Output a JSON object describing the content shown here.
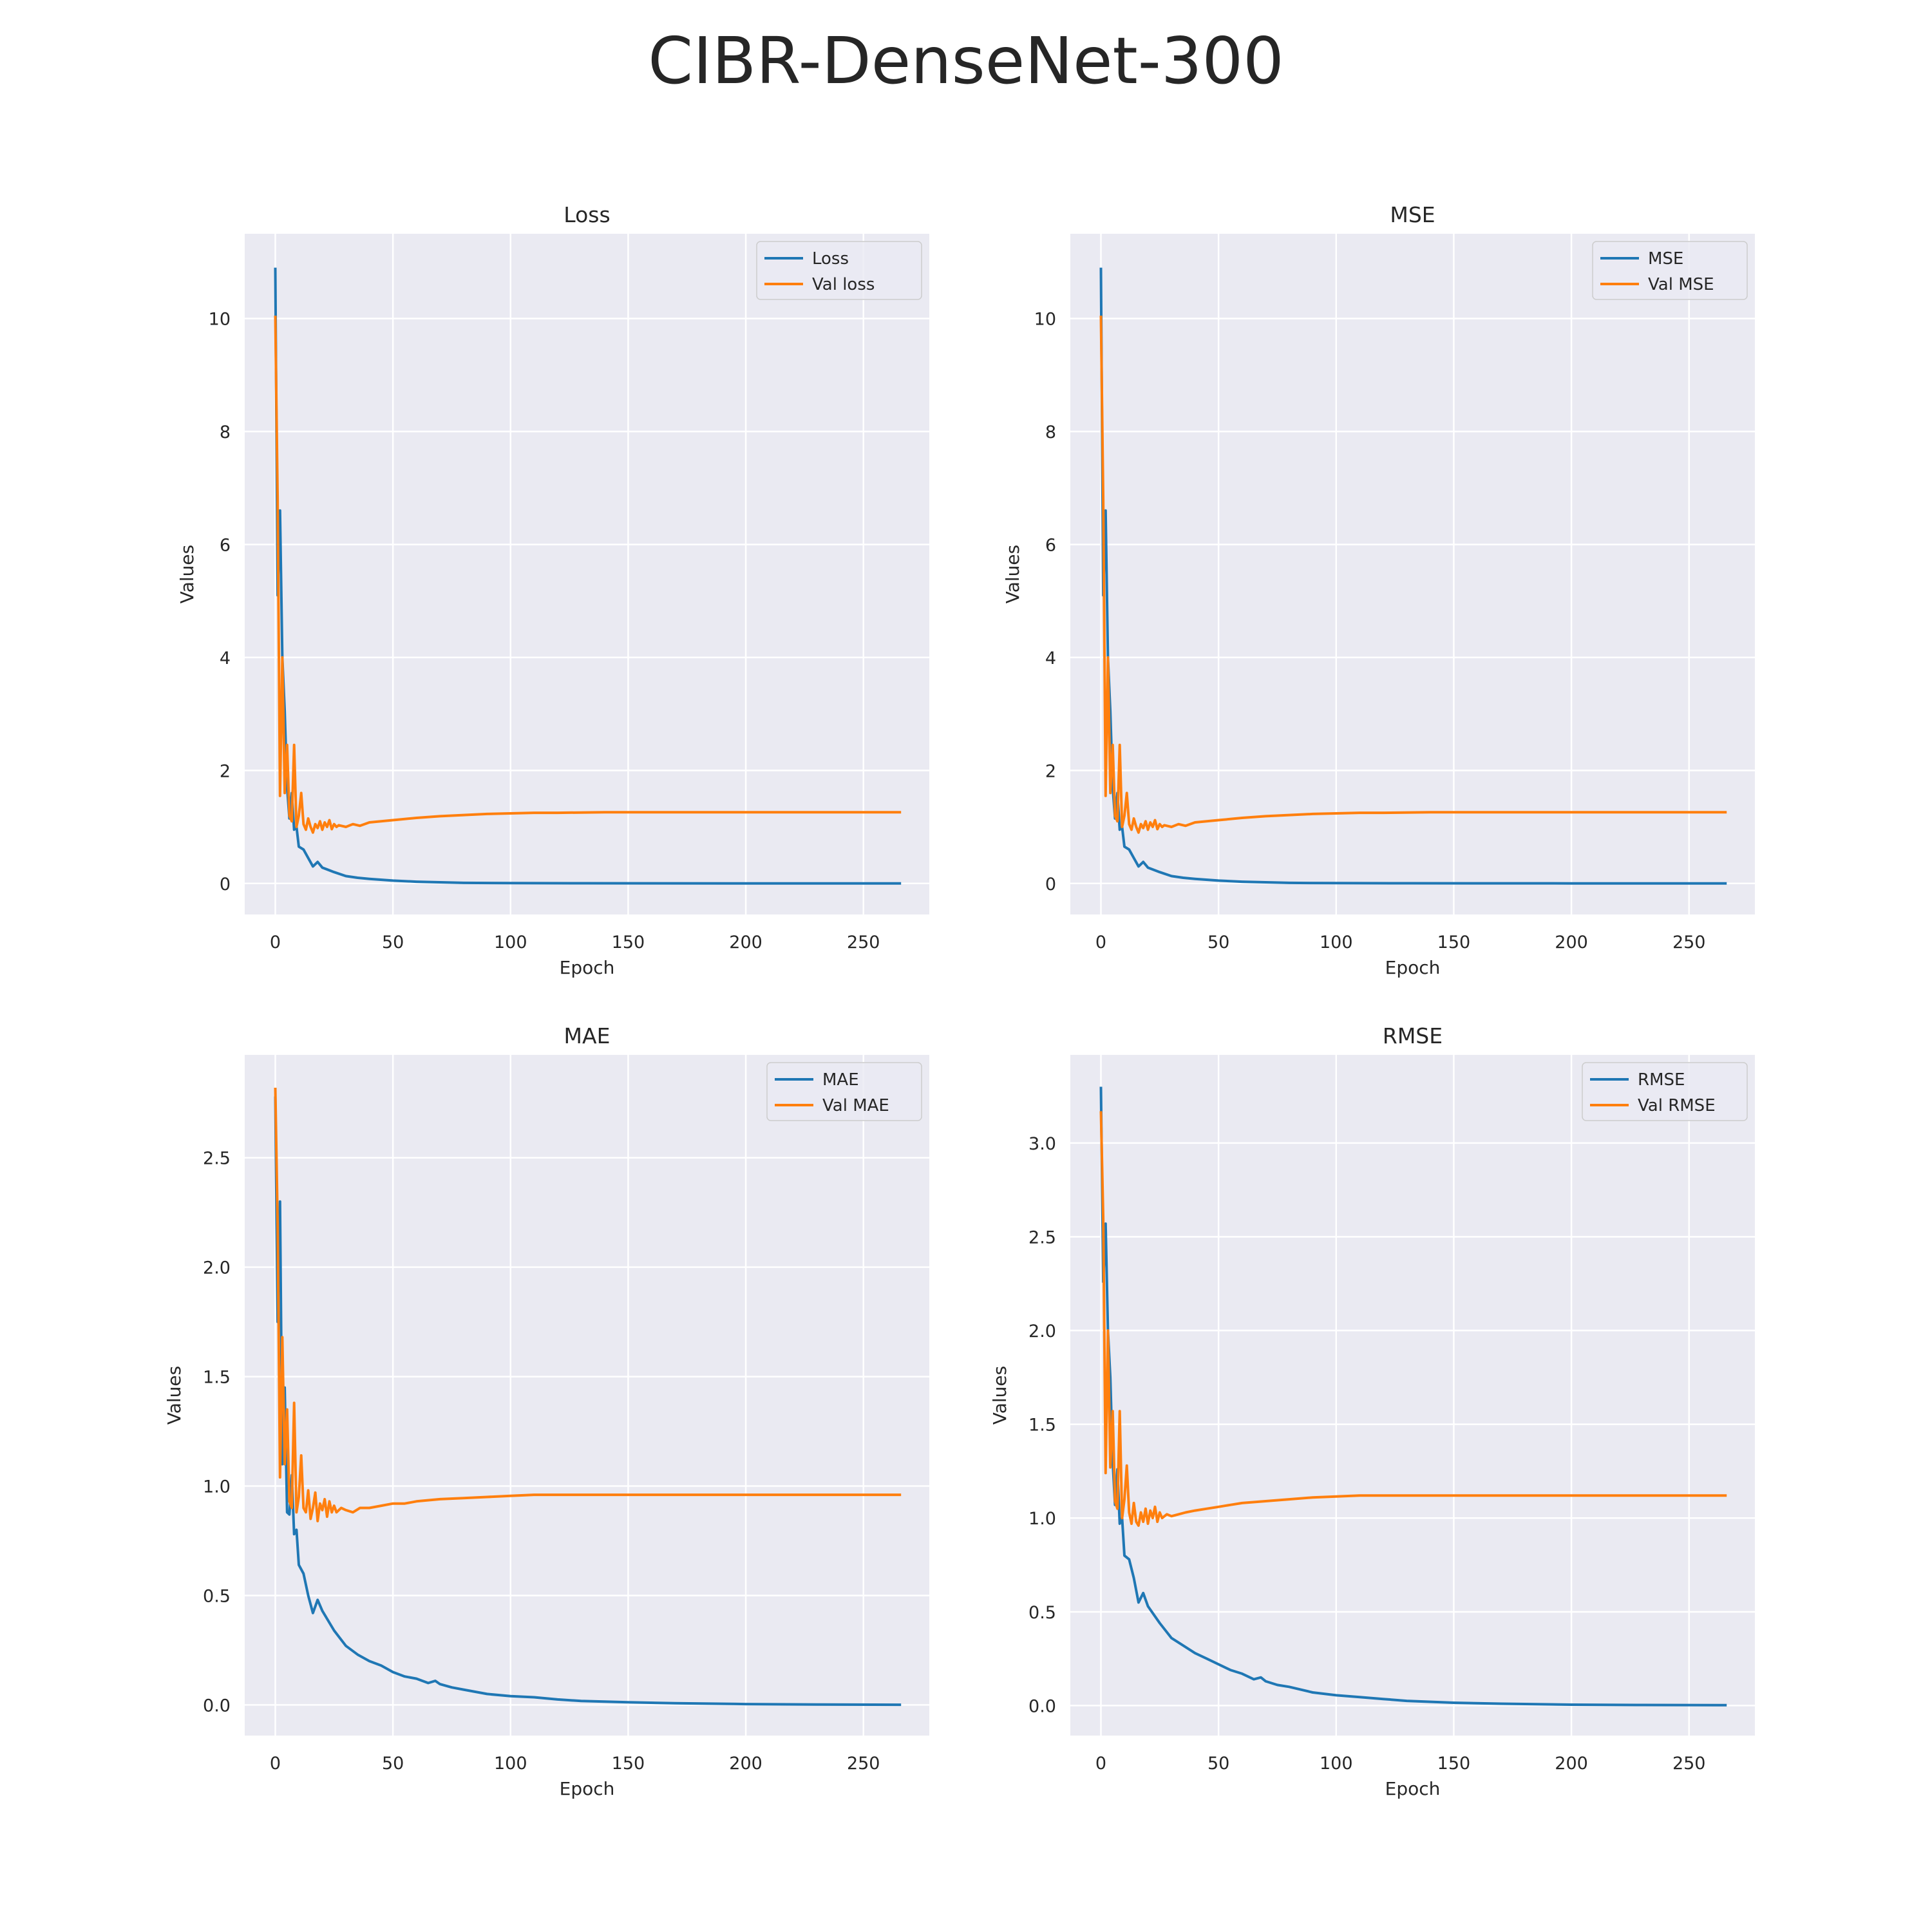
{
  "figure_title": "CIBR-DenseNet-300",
  "colors": {
    "train": "#1f77b4",
    "val": "#ff7f0e",
    "panel_bg": "#eaeaf2",
    "grid": "#ffffff"
  },
  "chart_data": [
    {
      "type": "line",
      "title": "Loss",
      "xlabel": "Epoch",
      "ylabel": "Values",
      "xlim": [
        -13,
        278
      ],
      "ylim": [
        -0.55,
        11.5
      ],
      "xticks": [
        0,
        50,
        100,
        150,
        200,
        250
      ],
      "yticks": [
        0,
        2,
        4,
        6,
        8,
        10
      ],
      "ytick_labels": [
        "0",
        "2",
        "4",
        "6",
        "8",
        "10"
      ],
      "grid": true,
      "legend_position": "upper right",
      "series": [
        {
          "name": "Loss",
          "color": "#1f77b4",
          "x": [
            0,
            1,
            2,
            3,
            4,
            5,
            6,
            7,
            8,
            9,
            10,
            12,
            14,
            16,
            18,
            20,
            25,
            30,
            35,
            40,
            50,
            60,
            70,
            80,
            100,
            130,
            160,
            200,
            230,
            266
          ],
          "y": [
            10.9,
            5.1,
            6.6,
            4.0,
            3.05,
            1.7,
            1.15,
            1.6,
            0.95,
            1.0,
            0.65,
            0.6,
            0.45,
            0.3,
            0.38,
            0.28,
            0.2,
            0.13,
            0.1,
            0.08,
            0.05,
            0.03,
            0.02,
            0.01,
            0.005,
            0.003,
            0.002,
            0.001,
            0.001,
            0.001
          ]
        },
        {
          "name": "Val loss",
          "color": "#ff7f0e",
          "x": [
            0,
            1,
            2,
            3,
            4,
            5,
            6,
            7,
            8,
            9,
            10,
            11,
            12,
            13,
            14,
            15,
            16,
            17,
            18,
            19,
            20,
            21,
            22,
            23,
            24,
            25,
            26,
            27,
            28,
            30,
            33,
            36,
            40,
            45,
            50,
            55,
            60,
            70,
            80,
            90,
            100,
            110,
            120,
            140,
            160,
            200,
            230,
            266
          ],
          "y": [
            10.05,
            6.8,
            1.55,
            4.0,
            1.6,
            2.45,
            1.2,
            1.1,
            2.45,
            1.0,
            1.2,
            1.6,
            1.05,
            0.95,
            1.15,
            1.0,
            0.9,
            1.05,
            0.98,
            1.1,
            0.95,
            1.08,
            1.0,
            1.12,
            0.96,
            1.05,
            1.0,
            1.03,
            1.02,
            1.0,
            1.05,
            1.02,
            1.08,
            1.1,
            1.12,
            1.14,
            1.16,
            1.19,
            1.21,
            1.23,
            1.24,
            1.25,
            1.25,
            1.26,
            1.26,
            1.26,
            1.26,
            1.26
          ]
        }
      ]
    },
    {
      "type": "line",
      "title": "MSE",
      "xlabel": "Epoch",
      "ylabel": "Values",
      "xlim": [
        -13,
        278
      ],
      "ylim": [
        -0.55,
        11.5
      ],
      "xticks": [
        0,
        50,
        100,
        150,
        200,
        250
      ],
      "yticks": [
        0,
        2,
        4,
        6,
        8,
        10
      ],
      "ytick_labels": [
        "0",
        "2",
        "4",
        "6",
        "8",
        "10"
      ],
      "grid": true,
      "legend_position": "upper right",
      "series": [
        {
          "name": "MSE",
          "color": "#1f77b4",
          "x": [
            0,
            1,
            2,
            3,
            4,
            5,
            6,
            7,
            8,
            9,
            10,
            12,
            14,
            16,
            18,
            20,
            25,
            30,
            35,
            40,
            50,
            60,
            70,
            80,
            100,
            130,
            160,
            200,
            230,
            266
          ],
          "y": [
            10.9,
            5.1,
            6.6,
            4.0,
            3.05,
            1.7,
            1.15,
            1.6,
            0.95,
            1.0,
            0.65,
            0.6,
            0.45,
            0.3,
            0.38,
            0.28,
            0.2,
            0.13,
            0.1,
            0.08,
            0.05,
            0.03,
            0.02,
            0.01,
            0.005,
            0.003,
            0.002,
            0.001,
            0.001,
            0.001
          ]
        },
        {
          "name": "Val MSE",
          "color": "#ff7f0e",
          "x": [
            0,
            1,
            2,
            3,
            4,
            5,
            6,
            7,
            8,
            9,
            10,
            11,
            12,
            13,
            14,
            15,
            16,
            17,
            18,
            19,
            20,
            21,
            22,
            23,
            24,
            25,
            26,
            27,
            28,
            30,
            33,
            36,
            40,
            45,
            50,
            55,
            60,
            70,
            80,
            90,
            100,
            110,
            120,
            140,
            160,
            200,
            230,
            266
          ],
          "y": [
            10.05,
            6.8,
            1.55,
            4.0,
            1.6,
            2.45,
            1.2,
            1.1,
            2.45,
            1.0,
            1.2,
            1.6,
            1.05,
            0.95,
            1.15,
            1.0,
            0.9,
            1.05,
            0.98,
            1.1,
            0.95,
            1.08,
            1.0,
            1.12,
            0.96,
            1.05,
            1.0,
            1.03,
            1.02,
            1.0,
            1.05,
            1.02,
            1.08,
            1.1,
            1.12,
            1.14,
            1.16,
            1.19,
            1.21,
            1.23,
            1.24,
            1.25,
            1.25,
            1.26,
            1.26,
            1.26,
            1.26,
            1.26
          ]
        }
      ]
    },
    {
      "type": "line",
      "title": "MAE",
      "xlabel": "Epoch",
      "ylabel": "Values",
      "xlim": [
        -13,
        278
      ],
      "ylim": [
        -0.14,
        2.97
      ],
      "xticks": [
        0,
        50,
        100,
        150,
        200,
        250
      ],
      "yticks": [
        0,
        0.5,
        1.0,
        1.5,
        2.0,
        2.5
      ],
      "ytick_labels": [
        "0.0",
        "0.5",
        "1.0",
        "1.5",
        "2.0",
        "2.5"
      ],
      "grid": true,
      "legend_position": "upper right",
      "series": [
        {
          "name": "MAE",
          "color": "#1f77b4",
          "x": [
            0,
            1,
            2,
            3,
            4,
            5,
            6,
            7,
            8,
            9,
            10,
            12,
            14,
            16,
            18,
            20,
            25,
            30,
            35,
            40,
            45,
            50,
            55,
            60,
            65,
            68,
            70,
            75,
            80,
            90,
            100,
            110,
            120,
            130,
            150,
            170,
            200,
            230,
            266
          ],
          "y": [
            2.78,
            1.75,
            2.3,
            1.1,
            1.45,
            0.88,
            0.87,
            1.05,
            0.78,
            0.8,
            0.64,
            0.6,
            0.5,
            0.42,
            0.48,
            0.43,
            0.34,
            0.27,
            0.23,
            0.2,
            0.18,
            0.15,
            0.13,
            0.12,
            0.1,
            0.11,
            0.095,
            0.08,
            0.07,
            0.05,
            0.04,
            0.035,
            0.025,
            0.018,
            0.012,
            0.008,
            0.004,
            0.002,
            0.001
          ]
        },
        {
          "name": "Val MAE",
          "color": "#ff7f0e",
          "x": [
            0,
            1,
            2,
            3,
            4,
            5,
            6,
            7,
            8,
            9,
            10,
            11,
            12,
            13,
            14,
            15,
            16,
            17,
            18,
            19,
            20,
            21,
            22,
            23,
            24,
            25,
            26,
            28,
            30,
            33,
            36,
            40,
            45,
            50,
            55,
            60,
            70,
            80,
            90,
            100,
            110,
            120,
            140,
            160,
            200,
            230,
            266
          ],
          "y": [
            2.82,
            2.2,
            1.04,
            1.68,
            1.1,
            1.35,
            0.93,
            0.9,
            1.38,
            0.88,
            0.95,
            1.14,
            0.9,
            0.88,
            0.98,
            0.85,
            0.9,
            0.97,
            0.84,
            0.92,
            0.89,
            0.94,
            0.86,
            0.93,
            0.88,
            0.91,
            0.88,
            0.9,
            0.89,
            0.88,
            0.9,
            0.9,
            0.91,
            0.92,
            0.92,
            0.93,
            0.94,
            0.945,
            0.95,
            0.955,
            0.96,
            0.96,
            0.96,
            0.96,
            0.96,
            0.96,
            0.96
          ]
        }
      ]
    },
    {
      "type": "line",
      "title": "RMSE",
      "xlabel": "Epoch",
      "ylabel": "Values",
      "xlim": [
        -13,
        278
      ],
      "ylim": [
        -0.16,
        3.47
      ],
      "xticks": [
        0,
        50,
        100,
        150,
        200,
        250
      ],
      "yticks": [
        0,
        0.5,
        1.0,
        1.5,
        2.0,
        2.5,
        3.0
      ],
      "ytick_labels": [
        "0.0",
        "0.5",
        "1.0",
        "1.5",
        "2.0",
        "2.5",
        "3.0"
      ],
      "grid": true,
      "legend_position": "upper right",
      "series": [
        {
          "name": "RMSE",
          "color": "#1f77b4",
          "x": [
            0,
            1,
            2,
            3,
            4,
            5,
            6,
            7,
            8,
            9,
            10,
            12,
            14,
            16,
            18,
            20,
            25,
            30,
            35,
            40,
            45,
            50,
            55,
            60,
            65,
            68,
            70,
            75,
            80,
            90,
            100,
            110,
            120,
            130,
            150,
            170,
            200,
            230,
            266
          ],
          "y": [
            3.3,
            2.26,
            2.57,
            2.0,
            1.75,
            1.3,
            1.07,
            1.26,
            0.97,
            1.0,
            0.8,
            0.78,
            0.68,
            0.55,
            0.6,
            0.53,
            0.44,
            0.36,
            0.32,
            0.28,
            0.25,
            0.22,
            0.19,
            0.17,
            0.14,
            0.15,
            0.13,
            0.11,
            0.1,
            0.07,
            0.055,
            0.045,
            0.035,
            0.025,
            0.015,
            0.01,
            0.005,
            0.003,
            0.002
          ]
        },
        {
          "name": "Val RMSE",
          "color": "#ff7f0e",
          "x": [
            0,
            1,
            2,
            3,
            4,
            5,
            6,
            7,
            8,
            9,
            10,
            11,
            12,
            13,
            14,
            15,
            16,
            17,
            18,
            19,
            20,
            21,
            22,
            23,
            24,
            25,
            26,
            28,
            30,
            33,
            36,
            40,
            45,
            50,
            55,
            60,
            70,
            80,
            90,
            100,
            110,
            120,
            140,
            160,
            200,
            230,
            266
          ],
          "y": [
            3.17,
            2.6,
            1.24,
            2.0,
            1.27,
            1.57,
            1.09,
            1.05,
            1.57,
            1.0,
            1.1,
            1.28,
            1.03,
            0.97,
            1.08,
            0.98,
            0.96,
            1.03,
            0.98,
            1.05,
            0.97,
            1.04,
            1.0,
            1.06,
            0.98,
            1.03,
            1.0,
            1.02,
            1.01,
            1.02,
            1.03,
            1.04,
            1.05,
            1.06,
            1.07,
            1.08,
            1.09,
            1.1,
            1.11,
            1.115,
            1.12,
            1.12,
            1.12,
            1.12,
            1.12,
            1.12,
            1.12
          ]
        }
      ]
    }
  ]
}
